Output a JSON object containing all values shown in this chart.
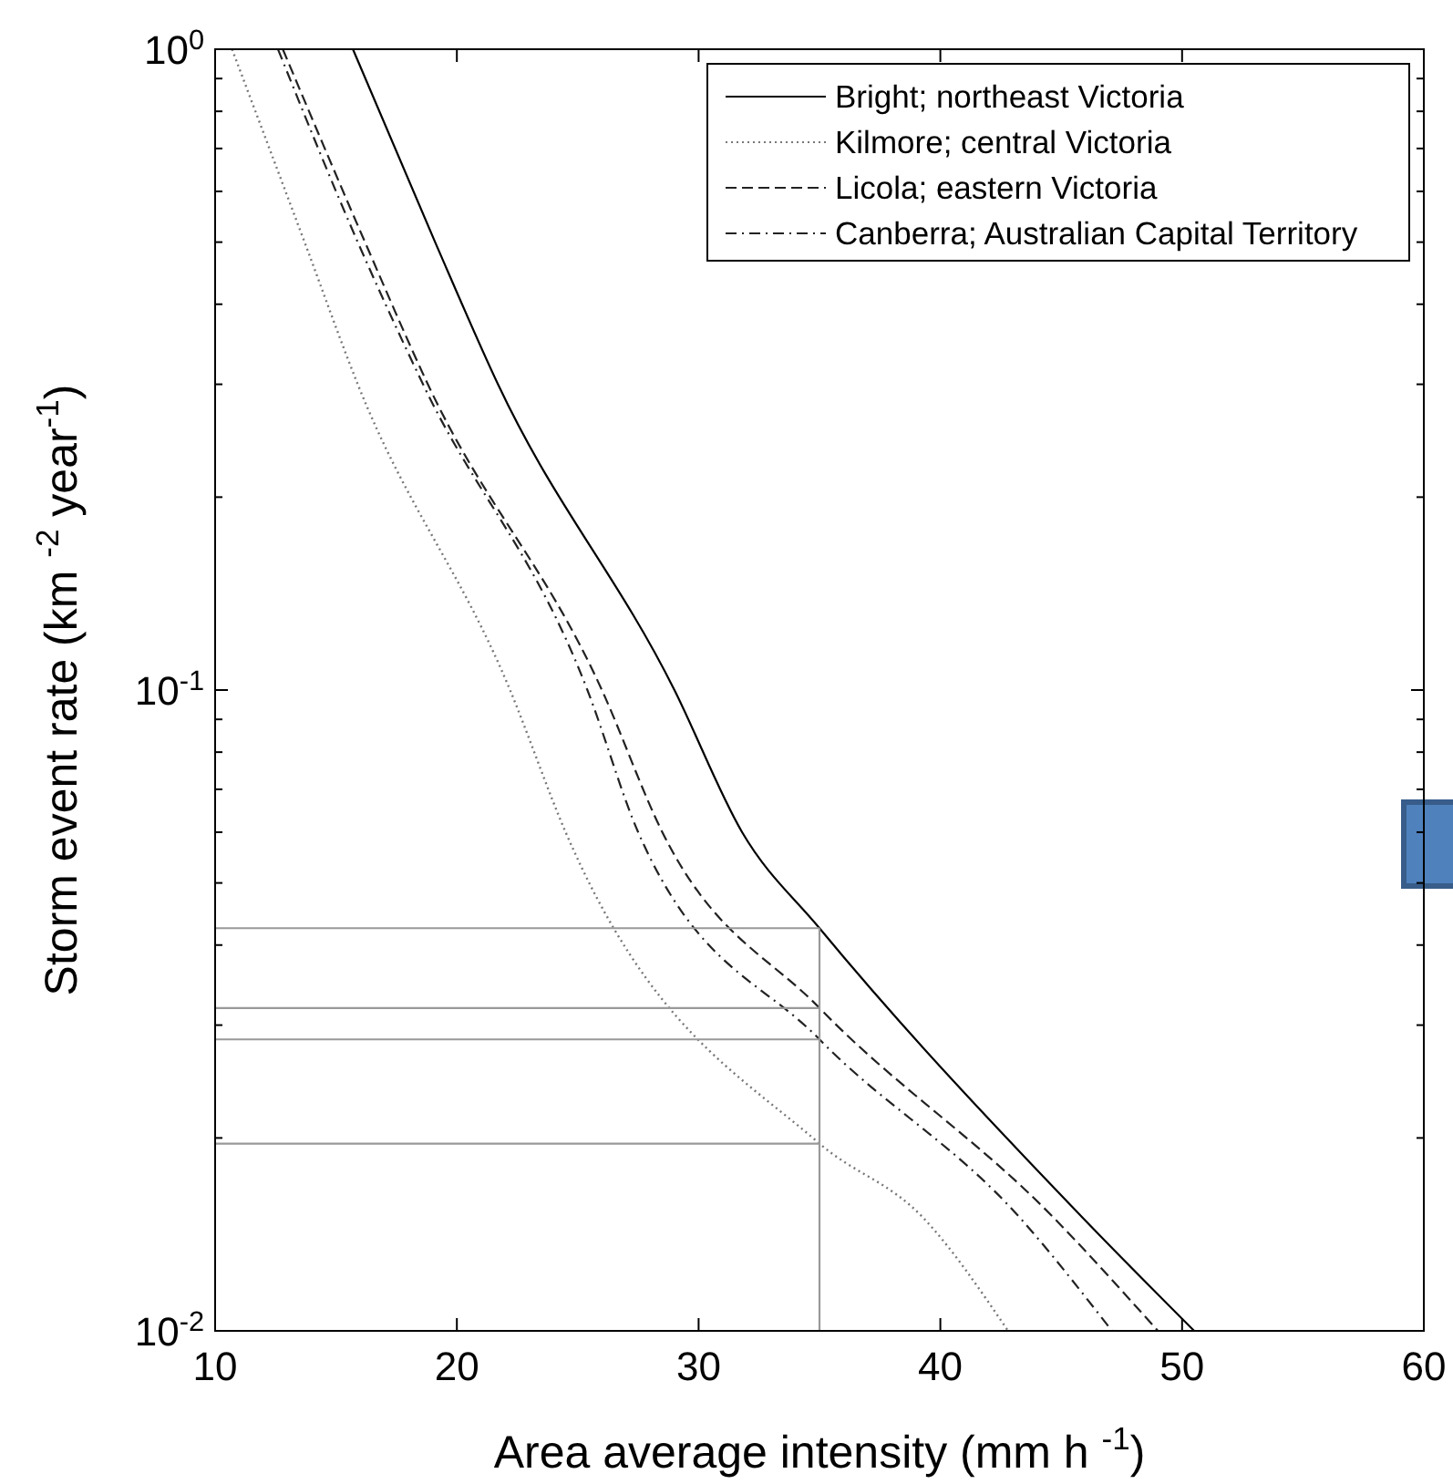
{
  "chart_data": {
    "type": "line",
    "xlabel": "Area average intensity (mm h $^{-1}$)",
    "ylabel": "Storm event rate (km $^{-2}$ year$^{-1}$)",
    "log": "y",
    "xlim": [
      10,
      60
    ],
    "xticks": [
      10,
      20,
      30,
      40,
      50,
      60
    ],
    "ylim": [
      0.01,
      1
    ],
    "yticks": [
      {
        "value": 0.01,
        "label": "10$^{-2}$"
      },
      {
        "value": 0.02,
        "label": null
      },
      {
        "value": 0.03,
        "label": null
      },
      {
        "value": 0.04,
        "label": null
      },
      {
        "value": 0.05,
        "label": null
      },
      {
        "value": 0.06,
        "label": null
      },
      {
        "value": 0.07,
        "label": null
      },
      {
        "value": 0.08,
        "label": null
      },
      {
        "value": 0.09,
        "label": null
      },
      {
        "value": 0.1,
        "label": "10$^{-1}$"
      },
      {
        "value": 0.2,
        "label": null
      },
      {
        "value": 0.3,
        "label": null
      },
      {
        "value": 0.4,
        "label": null
      },
      {
        "value": 0.5,
        "label": null
      },
      {
        "value": 0.6,
        "label": null
      },
      {
        "value": 0.7,
        "label": null
      },
      {
        "value": 0.8,
        "label": null
      },
      {
        "value": 0.9,
        "label": null
      },
      {
        "value": 1,
        "label": "10$^{0}$"
      }
    ],
    "grid": false,
    "legend": "top right",
    "marker": "none",
    "series": [
      {
        "name": "Bright; northeast Victoria",
        "color": "#000000",
        "line_style": "solid",
        "x": [
          15.7,
          19.1,
          21.7,
          29.0,
          31.8,
          35,
          45.9,
          50.5
        ],
        "values": [
          1,
          0.5,
          0.3,
          0.1,
          0.06,
          0.0425,
          0.015,
          0.01
        ]
      },
      {
        "name": "Kilmore; central Victoria",
        "color": "#777777",
        "line_style": "dotted",
        "x": [
          10.7,
          13.7,
          15.9,
          22.2,
          24.5,
          35,
          39.3,
          42.8
        ],
        "values": [
          1,
          0.5,
          0.3,
          0.1,
          0.06,
          0.0196,
          0.015,
          0.01
        ]
      },
      {
        "name": "Licola; eastern Victoria",
        "color": "#222222",
        "line_style": "dashed",
        "x": [
          12.8,
          16.2,
          18.8,
          26.0,
          28.5,
          35,
          44.7,
          49.0
        ],
        "values": [
          1,
          0.5,
          0.3,
          0.1,
          0.06,
          0.0319,
          0.015,
          0.01
        ]
      },
      {
        "name": "Canberra; Australian Capital Territory",
        "color": "#222222",
        "line_style": "dashdot",
        "x": [
          12.6,
          15.9,
          18.6,
          25.4,
          27.5,
          35,
          43.3,
          47.1
        ],
        "values": [
          1,
          0.5,
          0.3,
          0.1,
          0.06,
          0.0285,
          0.015,
          0.01
        ]
      },
      {
        "color": "#999999",
        "line_style": "solid",
        "x": [
          35,
          35
        ],
        "values": [
          0.01,
          0.0425
        ]
      },
      {
        "color": "#999999",
        "line_style": "solid",
        "x": [
          10,
          35
        ],
        "values": [
          0.0425,
          0.0425
        ]
      },
      {
        "color": "#999999",
        "line_style": "solid",
        "x": [
          10,
          35
        ],
        "values": [
          0.0319,
          0.0319
        ]
      },
      {
        "color": "#999999",
        "line_style": "solid",
        "x": [
          10,
          35
        ],
        "values": [
          0.0285,
          0.0285
        ]
      },
      {
        "color": "#999999",
        "line_style": "solid",
        "x": [
          10,
          35
        ],
        "values": [
          0.0196,
          0.0196
        ]
      }
    ]
  }
}
